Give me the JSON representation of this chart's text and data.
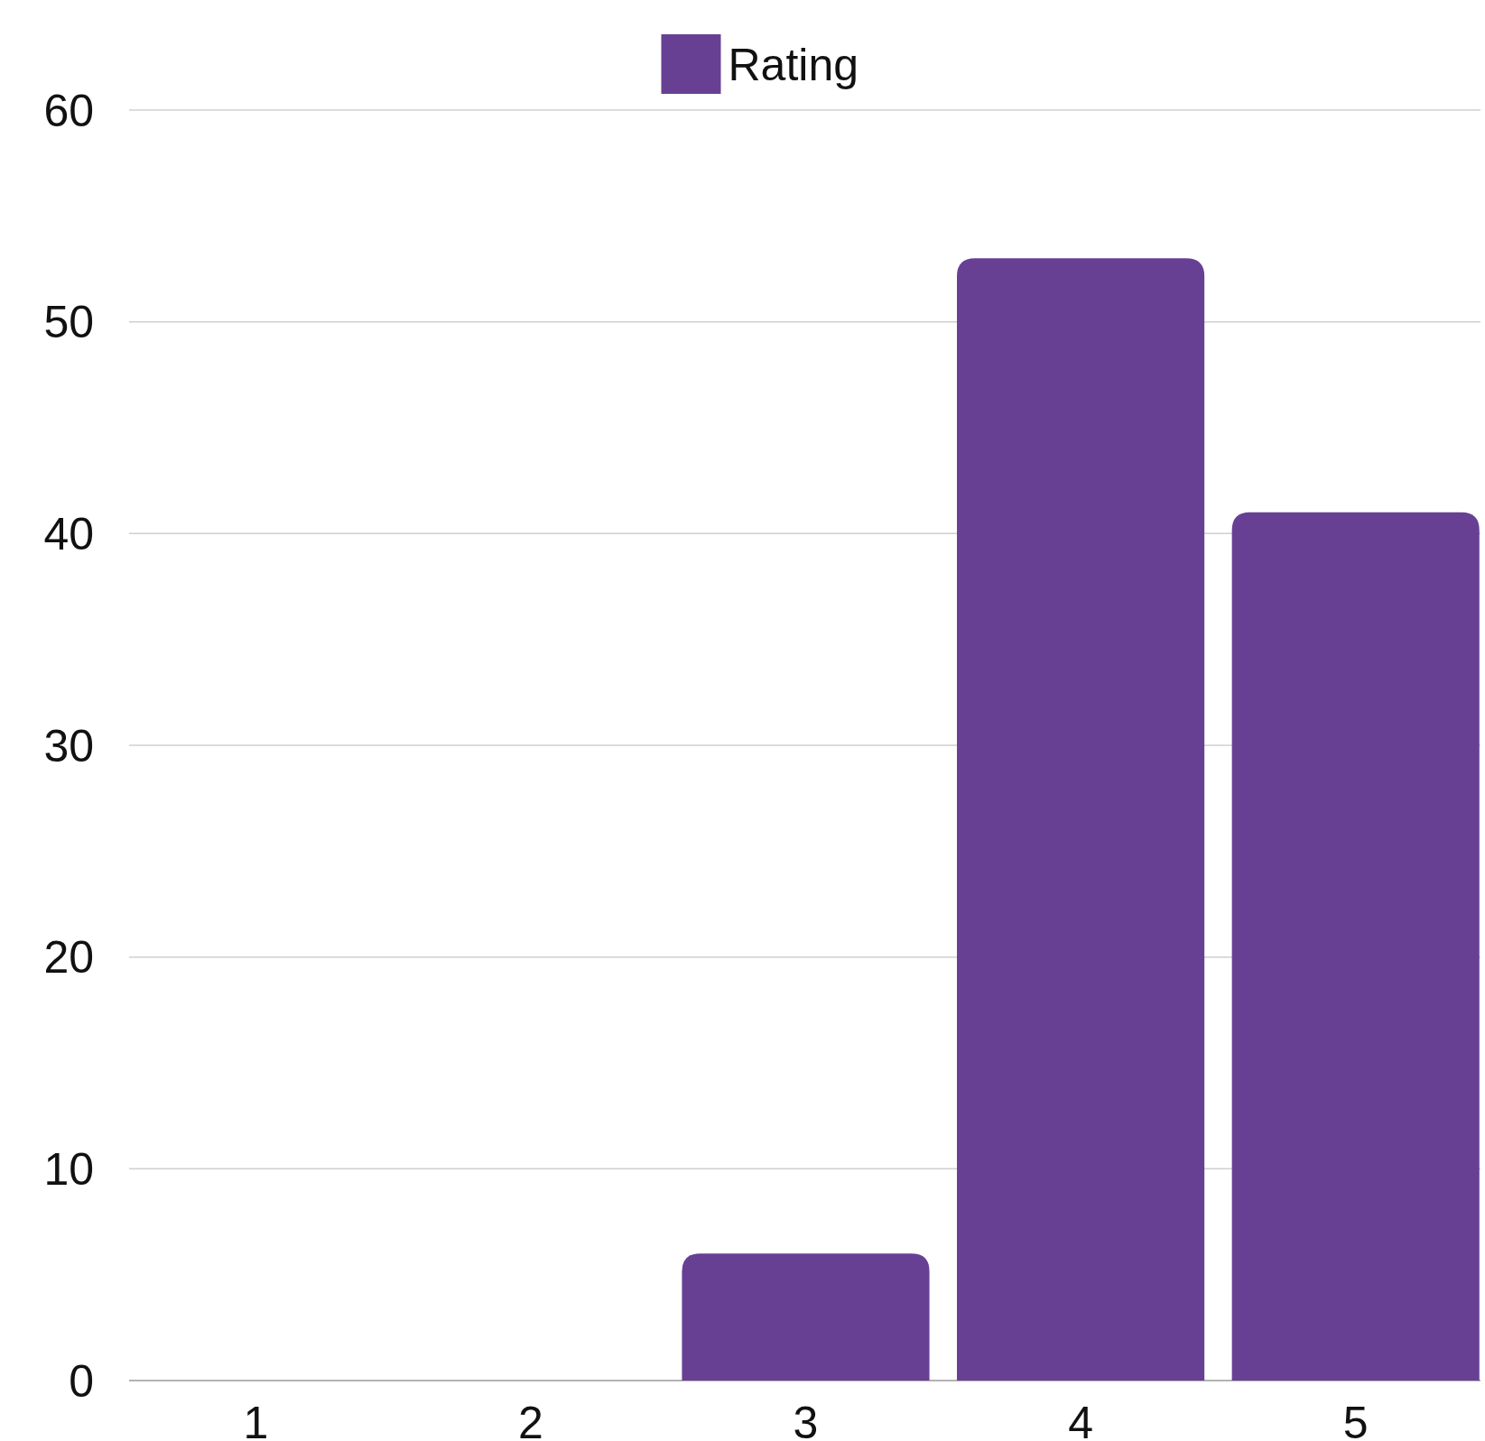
{
  "chart_data": {
    "type": "bar",
    "categories": [
      "1",
      "2",
      "3",
      "4",
      "5"
    ],
    "series": [
      {
        "name": "Rating",
        "color": "#674094",
        "values": [
          0,
          0,
          6,
          53,
          41
        ]
      }
    ],
    "ylim": [
      0,
      60
    ],
    "yticks": [
      0,
      10,
      20,
      30,
      40,
      50,
      60
    ],
    "grid": "y",
    "legend": "top"
  }
}
